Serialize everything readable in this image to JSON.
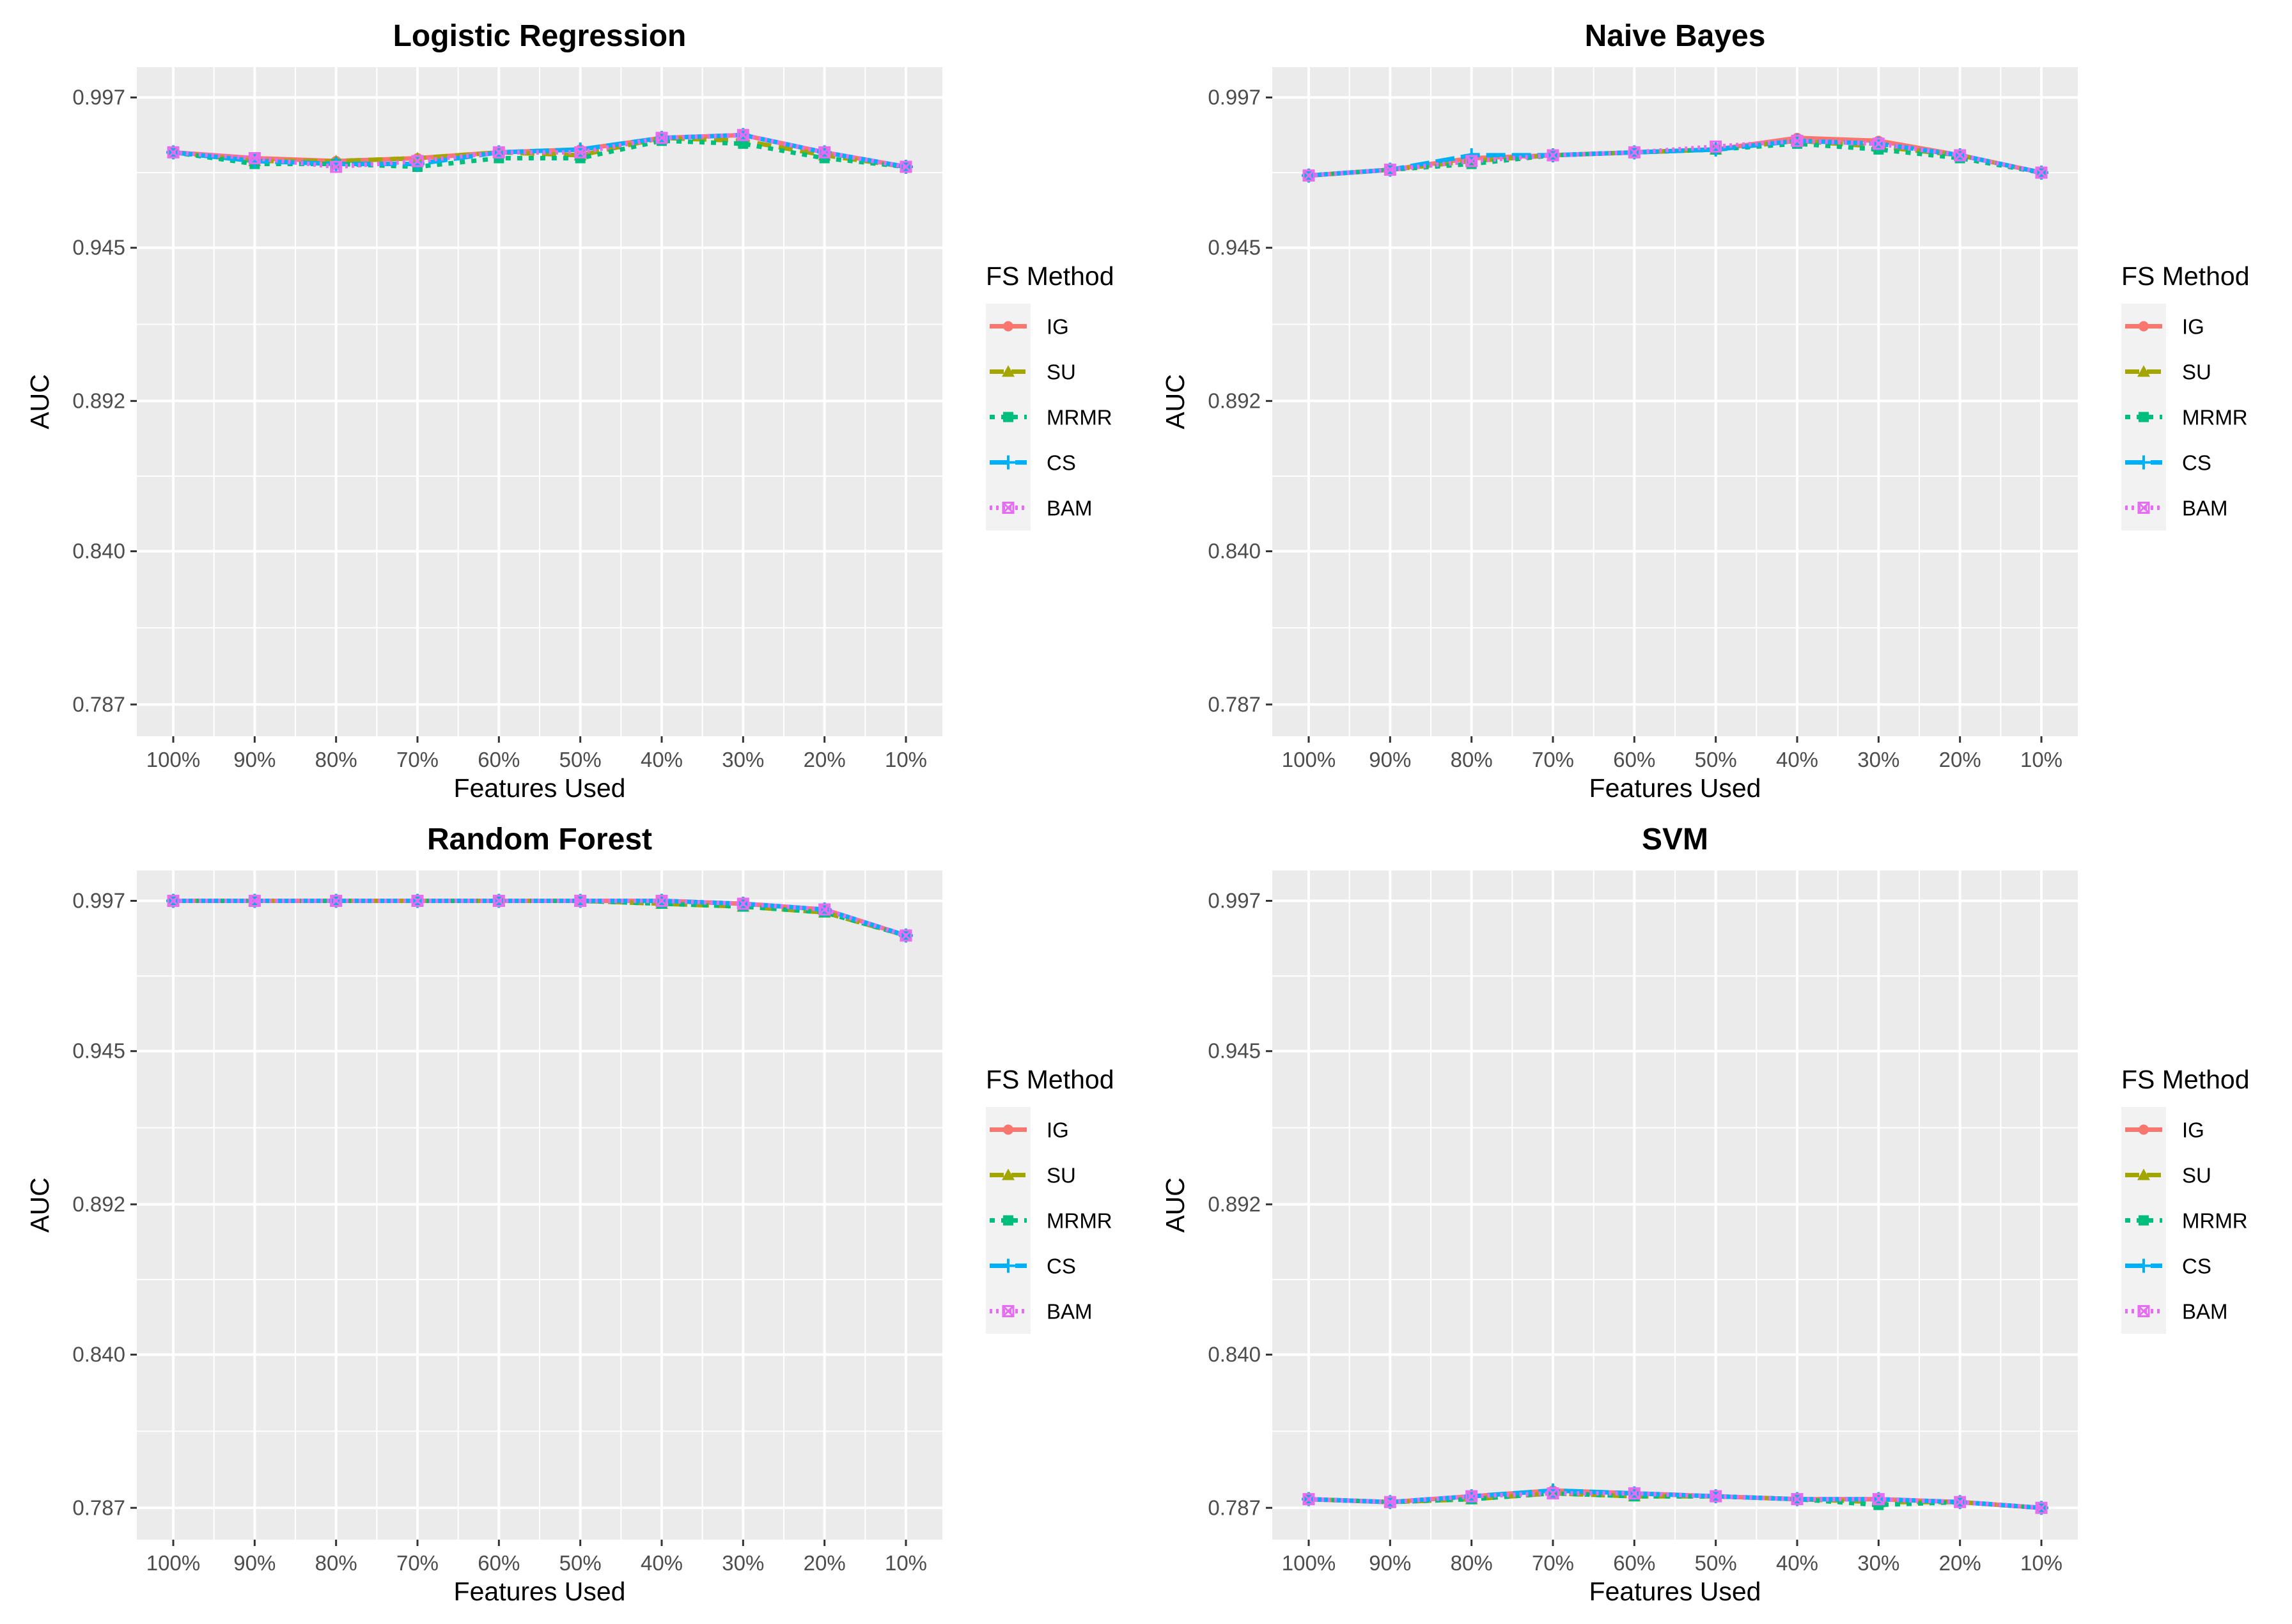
{
  "chart_data": [
    {
      "type": "line",
      "title": "Logistic Regression",
      "xlabel": "Features Used",
      "ylabel": "AUC",
      "categories": [
        "100%",
        "90%",
        "80%",
        "70%",
        "60%",
        "50%",
        "40%",
        "30%",
        "20%",
        "10%"
      ],
      "yticks": [
        "0.787",
        "0.840",
        "0.892",
        "0.945",
        "0.997"
      ],
      "ylim": [
        0.776,
        1.0075
      ],
      "legend_title": "FS Method",
      "series": [
        {
          "name": "IG",
          "color": "#F8766D",
          "dash": "",
          "marker": "circle",
          "values": [
            0.978,
            0.976,
            0.975,
            0.976,
            0.978,
            0.979,
            0.983,
            0.984,
            0.978,
            0.973
          ]
        },
        {
          "name": "SU",
          "color": "#A3A500",
          "dash": "22,12",
          "marker": "triangle",
          "values": [
            0.978,
            0.975,
            0.975,
            0.976,
            0.978,
            0.977,
            0.983,
            0.982,
            0.977,
            0.973
          ]
        },
        {
          "name": "MRMR",
          "color": "#00BF7D",
          "dash": "8,10",
          "marker": "square",
          "values": [
            0.978,
            0.974,
            0.974,
            0.973,
            0.976,
            0.976,
            0.982,
            0.981,
            0.976,
            0.973
          ]
        },
        {
          "name": "CS",
          "color": "#00B0F6",
          "dash": "30,10",
          "marker": "plus",
          "values": [
            0.978,
            0.975,
            0.974,
            0.974,
            0.978,
            0.979,
            0.983,
            0.984,
            0.978,
            0.973
          ]
        },
        {
          "name": "BAM",
          "color": "#E76BF3",
          "dash": "4,6",
          "marker": "squarex",
          "values": [
            0.978,
            0.976,
            0.973,
            0.975,
            0.978,
            0.978,
            0.983,
            0.984,
            0.978,
            0.973
          ]
        }
      ]
    },
    {
      "type": "line",
      "title": "Naive Bayes",
      "xlabel": "Features Used",
      "ylabel": "AUC",
      "categories": [
        "100%",
        "90%",
        "80%",
        "70%",
        "60%",
        "50%",
        "40%",
        "30%",
        "20%",
        "10%"
      ],
      "yticks": [
        "0.787",
        "0.840",
        "0.892",
        "0.945",
        "0.997"
      ],
      "ylim": [
        0.776,
        1.0075
      ],
      "legend_title": "FS Method",
      "series": [
        {
          "name": "IG",
          "color": "#F8766D",
          "dash": "",
          "marker": "circle",
          "values": [
            0.97,
            0.972,
            0.976,
            0.977,
            0.978,
            0.979,
            0.983,
            0.982,
            0.977,
            0.971
          ]
        },
        {
          "name": "SU",
          "color": "#A3A500",
          "dash": "22,12",
          "marker": "triangle",
          "values": [
            0.97,
            0.972,
            0.975,
            0.977,
            0.978,
            0.979,
            0.982,
            0.98,
            0.977,
            0.971
          ]
        },
        {
          "name": "MRMR",
          "color": "#00BF7D",
          "dash": "8,10",
          "marker": "square",
          "values": [
            0.97,
            0.972,
            0.974,
            0.977,
            0.978,
            0.979,
            0.981,
            0.979,
            0.976,
            0.971
          ]
        },
        {
          "name": "CS",
          "color": "#00B0F6",
          "dash": "30,10",
          "marker": "plus",
          "values": [
            0.97,
            0.972,
            0.977,
            0.977,
            0.978,
            0.979,
            0.982,
            0.981,
            0.977,
            0.971
          ]
        },
        {
          "name": "BAM",
          "color": "#E76BF3",
          "dash": "4,6",
          "marker": "squarex",
          "values": [
            0.97,
            0.972,
            0.975,
            0.977,
            0.978,
            0.98,
            0.982,
            0.981,
            0.977,
            0.971
          ]
        }
      ]
    },
    {
      "type": "line",
      "title": "Random Forest",
      "xlabel": "Features Used",
      "ylabel": "AUC",
      "categories": [
        "100%",
        "90%",
        "80%",
        "70%",
        "60%",
        "50%",
        "40%",
        "30%",
        "20%",
        "10%"
      ],
      "yticks": [
        "0.787",
        "0.840",
        "0.892",
        "0.945",
        "0.997"
      ],
      "ylim": [
        0.776,
        1.0075
      ],
      "legend_title": "FS Method",
      "series": [
        {
          "name": "IG",
          "color": "#F8766D",
          "dash": "",
          "marker": "circle",
          "values": [
            0.997,
            0.997,
            0.997,
            0.997,
            0.997,
            0.997,
            0.997,
            0.996,
            0.994,
            0.985
          ]
        },
        {
          "name": "SU",
          "color": "#A3A500",
          "dash": "22,12",
          "marker": "triangle",
          "values": [
            0.997,
            0.997,
            0.997,
            0.997,
            0.997,
            0.997,
            0.996,
            0.995,
            0.993,
            0.985
          ]
        },
        {
          "name": "MRMR",
          "color": "#00BF7D",
          "dash": "8,10",
          "marker": "square",
          "values": [
            0.997,
            0.997,
            0.997,
            0.997,
            0.997,
            0.997,
            0.996,
            0.995,
            0.993,
            0.985
          ]
        },
        {
          "name": "CS",
          "color": "#00B0F6",
          "dash": "30,10",
          "marker": "plus",
          "values": [
            0.997,
            0.997,
            0.997,
            0.997,
            0.997,
            0.997,
            0.997,
            0.996,
            0.994,
            0.985
          ]
        },
        {
          "name": "BAM",
          "color": "#E76BF3",
          "dash": "4,6",
          "marker": "squarex",
          "values": [
            0.997,
            0.997,
            0.997,
            0.997,
            0.997,
            0.997,
            0.997,
            0.996,
            0.994,
            0.985
          ]
        }
      ]
    },
    {
      "type": "line",
      "title": "SVM",
      "xlabel": "Features Used",
      "ylabel": "AUC",
      "categories": [
        "100%",
        "90%",
        "80%",
        "70%",
        "60%",
        "50%",
        "40%",
        "30%",
        "20%",
        "10%"
      ],
      "yticks": [
        "0.787",
        "0.840",
        "0.892",
        "0.945",
        "0.997"
      ],
      "ylim": [
        0.776,
        1.0075
      ],
      "legend_title": "FS Method",
      "series": [
        {
          "name": "IG",
          "color": "#F8766D",
          "dash": "",
          "marker": "circle",
          "values": [
            0.79,
            0.789,
            0.791,
            0.793,
            0.792,
            0.791,
            0.79,
            0.79,
            0.789,
            0.787
          ]
        },
        {
          "name": "SU",
          "color": "#A3A500",
          "dash": "22,12",
          "marker": "triangle",
          "values": [
            0.79,
            0.789,
            0.79,
            0.792,
            0.791,
            0.791,
            0.79,
            0.789,
            0.789,
            0.787
          ]
        },
        {
          "name": "MRMR",
          "color": "#00BF7D",
          "dash": "8,10",
          "marker": "square",
          "values": [
            0.79,
            0.789,
            0.79,
            0.792,
            0.791,
            0.791,
            0.79,
            0.788,
            0.789,
            0.787
          ]
        },
        {
          "name": "CS",
          "color": "#00B0F6",
          "dash": "30,10",
          "marker": "plus",
          "values": [
            0.79,
            0.789,
            0.791,
            0.793,
            0.792,
            0.791,
            0.79,
            0.79,
            0.789,
            0.787
          ]
        },
        {
          "name": "BAM",
          "color": "#E76BF3",
          "dash": "4,6",
          "marker": "squarex",
          "values": [
            0.79,
            0.789,
            0.791,
            0.792,
            0.792,
            0.791,
            0.79,
            0.79,
            0.789,
            0.787
          ]
        }
      ]
    }
  ]
}
